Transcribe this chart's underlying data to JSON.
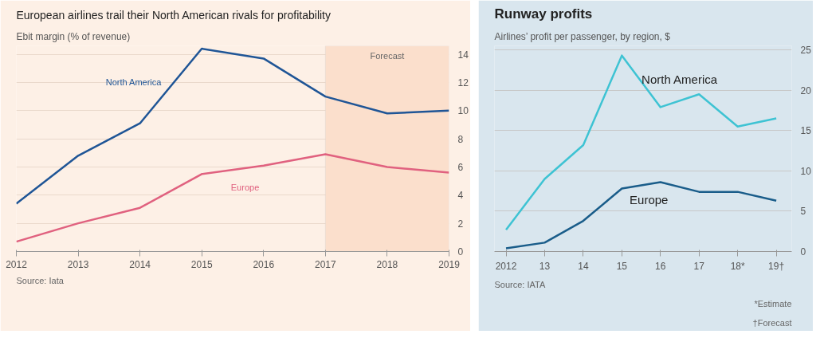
{
  "chart_data": [
    {
      "type": "line",
      "title": "European airlines trail their North American rivals for profitability",
      "subtitle": "Ebit margin (% of revenue)",
      "x": [
        2012,
        2013,
        2014,
        2015,
        2016,
        2017,
        2018,
        2019
      ],
      "series": [
        {
          "name": "North America",
          "color": "#1f5596",
          "values": [
            3.4,
            6.8,
            9.1,
            14.4,
            13.7,
            11.0,
            9.8,
            10.0
          ]
        },
        {
          "name": "Europe",
          "color": "#e0617f",
          "values": [
            0.7,
            2.0,
            3.1,
            5.5,
            6.1,
            6.9,
            6.0,
            5.6
          ]
        }
      ],
      "xlim": [
        2012,
        2019
      ],
      "xticks": [
        2012,
        2013,
        2014,
        2015,
        2016,
        2017,
        2018,
        2019
      ],
      "ylim": [
        0,
        14.6
      ],
      "yticks": [
        0,
        2,
        4,
        6,
        8,
        10,
        12,
        14
      ],
      "bands": [
        {
          "axis": "x",
          "from": 2017,
          "to": 2019,
          "label": "Forecast",
          "color": "#fbdfcc"
        }
      ],
      "grid": "y",
      "line_style": "solid",
      "marker": "none",
      "annotations": [
        "Source: Iata"
      ]
    },
    {
      "type": "line",
      "title": "Runway profits",
      "subtitle": "Airlines’ profit per passenger, by region, $",
      "categories": [
        "2012",
        "13",
        "14",
        "15",
        "16",
        "17",
        "18*",
        "19†"
      ],
      "series": [
        {
          "name": "North America",
          "color": "#3ec3d3",
          "values": [
            2.7,
            9.0,
            13.2,
            24.3,
            17.9,
            19.5,
            15.5,
            16.5
          ]
        },
        {
          "name": "Europe",
          "color": "#1a5d8a",
          "values": [
            0.4,
            1.1,
            3.8,
            7.8,
            8.6,
            7.4,
            7.4,
            6.3
          ]
        }
      ],
      "ylim": [
        0,
        25.5
      ],
      "yticks": [
        0,
        5,
        10,
        15,
        20,
        25
      ],
      "grid": "y",
      "line_style": "solid",
      "marker": "none",
      "annotations": [
        "Source: IATA",
        "*Estimate",
        "†Forecast"
      ]
    }
  ]
}
